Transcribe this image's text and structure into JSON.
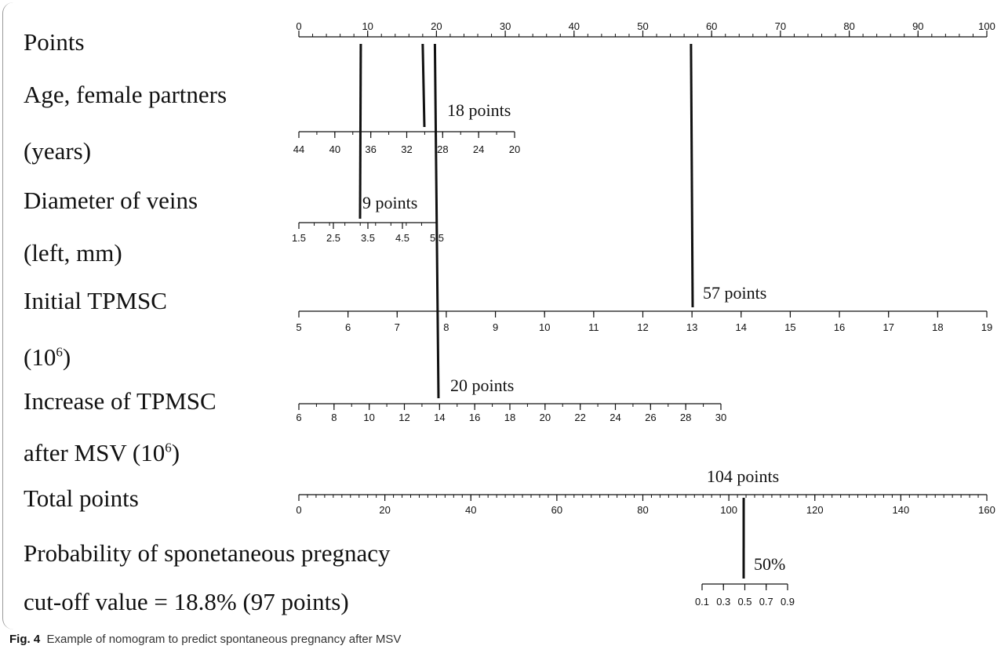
{
  "row_labels": {
    "points": "Points",
    "age_line1": "Age, female partners",
    "age_line2": "(years)",
    "diameter_line1": "Diameter of veins",
    "diameter_line2": "(left, mm)",
    "initial_line1": "Initial TPMSC",
    "initial_line2_base": "(10",
    "initial_line2_sup": "6",
    "initial_line2_close": ")",
    "increase_line1": "Increase of TPMSC",
    "increase_line2_base": "after MSV (10",
    "increase_line2_sup": "6",
    "increase_line2_close": ")",
    "total": "Total points",
    "probability_line1": "Probability of sponetaneous pregnacy",
    "cutoff": "cut-off value = 18.8% (97 points)"
  },
  "caption": {
    "label": "Fig. 4",
    "text": "Example of nomogram to predict spontaneous pregnancy after MSV"
  },
  "chart_data": {
    "type": "nomogram",
    "axes": [
      {
        "name": "Points",
        "min": 0,
        "max": 100,
        "tick_labels": [
          "0",
          "10",
          "20",
          "30",
          "40",
          "50",
          "60",
          "70",
          "80",
          "90",
          "100"
        ]
      },
      {
        "name": "Age, female partners (years)",
        "values_reversed": true,
        "tick_labels": [
          "44",
          "40",
          "36",
          "32",
          "28",
          "24",
          "20"
        ]
      },
      {
        "name": "Diameter of veins (left, mm)",
        "tick_labels": [
          "1.5",
          "2.5",
          "3.5",
          "4.5",
          "5.5"
        ]
      },
      {
        "name": "Initial TPMSC (10^6)",
        "min": 5,
        "max": 19,
        "tick_labels": [
          "5",
          "6",
          "7",
          "8",
          "9",
          "10",
          "11",
          "12",
          "13",
          "14",
          "15",
          "16",
          "17",
          "18",
          "19"
        ]
      },
      {
        "name": "Increase of TPMSC after MSV (10^6)",
        "min": 6,
        "max": 30,
        "tick_labels": [
          "6",
          "8",
          "10",
          "12",
          "14",
          "16",
          "18",
          "20",
          "22",
          "24",
          "26",
          "28",
          "30"
        ]
      },
      {
        "name": "Total points",
        "min": 0,
        "max": 160,
        "tick_labels": [
          "0",
          "20",
          "40",
          "60",
          "80",
          "100",
          "120",
          "140",
          "160"
        ]
      },
      {
        "name": "Probability of sponetaneous pregnacy",
        "tick_labels": [
          "0.1",
          "0.3",
          "0.5",
          "0.7",
          "0.9"
        ]
      }
    ],
    "example": {
      "age_points": 18,
      "diameter_points": 9,
      "initial_tpmsc_points": 57,
      "increase_points": 20,
      "total_points": 104,
      "probability": 0.5
    },
    "annotations": [
      "18 points",
      "9 points",
      "57 points",
      "20 points",
      "104 points",
      "50%"
    ],
    "cutoff": {
      "probability_percent": 18.8,
      "points": 97
    }
  }
}
